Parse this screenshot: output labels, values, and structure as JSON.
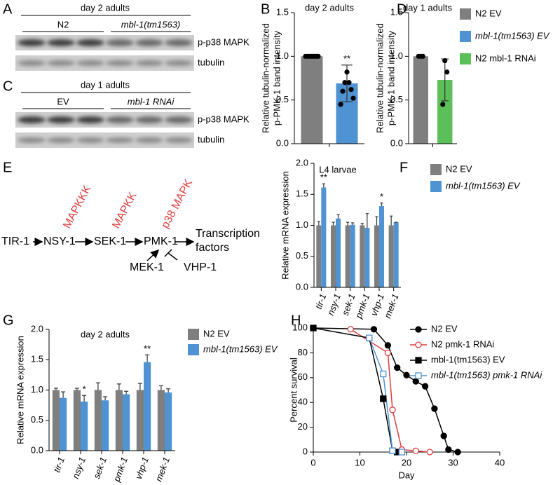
{
  "panel_letters": [
    "A",
    "B",
    "C",
    "D",
    "E",
    "F",
    "G",
    "H"
  ],
  "blots": [
    {
      "title": "day 2 adults",
      "groups": [
        "N2",
        "mbl-1(tm1563)"
      ],
      "rows": [
        "p-p38 MAPK",
        "tubulin"
      ]
    },
    {
      "title": "day 1 adults",
      "groups": [
        "EV",
        "mbl-1 RNAi"
      ],
      "rows": [
        "p-p38 MAPK",
        "tubulin"
      ]
    }
  ],
  "pathway": {
    "nodes": [
      "TIR-1",
      "NSY-1",
      "SEK-1",
      "PMK-1"
    ],
    "output": [
      "Transcription",
      "factors"
    ],
    "kinase_classes": [
      "MAPKKK",
      "MAPKK",
      "p38 MAPK"
    ],
    "activator": "MEK-1",
    "inhibitor": "VHP-1"
  },
  "chart_data": [
    {
      "type": "bar",
      "title": "day 2 adults",
      "ylabel": [
        "Relative tubulin-normalized",
        "p-PMK-1 band intensity"
      ],
      "ylim": [
        0,
        1.5
      ],
      "yticks": [
        {
          "value": 0,
          "label": "0.0"
        },
        0.5,
        {
          "value": 1,
          "label": "1.0"
        },
        1.5
      ],
      "series": [
        {
          "color": "#7f7f7f",
          "values": [
            1.0
          ],
          "points": [
            1,
            1,
            1,
            1,
            1,
            1,
            1
          ]
        },
        {
          "color": "#4f93d2",
          "values": [
            0.69
          ],
          "errors": [
            0.21
          ],
          "points": [
            0.82,
            0.7,
            0.7,
            0.62,
            0.6,
            0.52,
            0.45
          ],
          "annotations": [
            "**"
          ]
        }
      ]
    },
    {
      "type": "bar",
      "title": "day 1 adults",
      "ylabel": [
        "Relative tubulin-normalized",
        "p-PMK-1 band intensity"
      ],
      "ylim": [
        0,
        1.5
      ],
      "yticks": [
        {
          "value": 0,
          "label": "0.0"
        },
        0.5,
        {
          "value": 1,
          "label": "1.0"
        },
        1.5
      ],
      "series": [
        {
          "color": "#7f7f7f",
          "values": [
            1.0
          ],
          "points": [
            1,
            1,
            1
          ]
        },
        {
          "color": "#5cc05a",
          "values": [
            0.73
          ],
          "errors": [
            0.24
          ],
          "points": [
            0.95,
            0.82,
            0.45
          ]
        }
      ],
      "legend": [
        {
          "name": "N2 EV",
          "color": "#7f7f7f"
        },
        {
          "name": "mbl-1(tm1563) EV",
          "color": "#4f93d2"
        },
        {
          "name": "N2 mbl-1 RNAi",
          "color": "#5cc05a"
        }
      ]
    },
    {
      "type": "bar",
      "title": "L4 larvae",
      "ylabel": [
        "Relative mRNA expression"
      ],
      "categories": [
        "tir-1",
        "nsy-1",
        "sek-1",
        "pmk-1",
        "vhp-1",
        "mek-1"
      ],
      "ylim": [
        0,
        2
      ],
      "yticks": [
        {
          "value": 0,
          "label": "0.0"
        },
        0.5,
        {
          "value": 1,
          "label": "1.0"
        },
        1.5,
        {
          "value": 2,
          "label": "2.0"
        }
      ],
      "series": [
        {
          "name": "N2 EV",
          "color": "#7f7f7f",
          "values": [
            1,
            1,
            1,
            1,
            1,
            1
          ],
          "errors": [
            0.06,
            0.05,
            0.05,
            0.03,
            0.14,
            0.15
          ]
        },
        {
          "name": "mbl-1(tm1563) EV",
          "color": "#4f93d2",
          "values": [
            1.61,
            1.11,
            1.01,
            0.96,
            1.31,
            1.05
          ],
          "errors": [
            0.06,
            0.06,
            0.03,
            0.23,
            0.05,
            0
          ],
          "annotations": [
            "**",
            null,
            null,
            null,
            "*",
            null
          ]
        }
      ]
    },
    {
      "type": "bar",
      "title": "day 2 adults",
      "ylabel": [
        "Relative mRNA expression"
      ],
      "categories": [
        "tir-1",
        "nsy-1",
        "sek-1",
        "pmk-1",
        "vhp-1",
        "mek-1"
      ],
      "ylim": [
        0,
        2
      ],
      "yticks": [
        {
          "value": 0,
          "label": "0.0"
        },
        0.5,
        {
          "value": 1,
          "label": "1.0"
        },
        1.5,
        {
          "value": 2,
          "label": "2.0"
        }
      ],
      "series": [
        {
          "name": "N2 EV",
          "color": "#7f7f7f",
          "values": [
            1,
            1,
            1,
            1,
            1,
            1
          ],
          "errors": [
            0.03,
            0.03,
            0.12,
            0.1,
            0.11,
            0.07
          ]
        },
        {
          "name": "mbl-1(tm1563) EV",
          "color": "#4f93d2",
          "values": [
            0.87,
            0.81,
            0.83,
            0.93,
            1.46,
            0.96
          ],
          "errors": [
            0.1,
            0.1,
            0.06,
            0.05,
            0.12,
            0.06
          ],
          "annotations": [
            null,
            "*",
            null,
            null,
            "**",
            null
          ]
        }
      ]
    },
    {
      "type": "line",
      "xlabel": "Day",
      "ylabel": [
        "Percent survival"
      ],
      "xlim": [
        0,
        40
      ],
      "xticks": [
        0,
        10,
        20,
        30,
        40
      ],
      "ylim": [
        0,
        100
      ],
      "yticks": [
        0,
        20,
        40,
        60,
        80,
        100
      ],
      "series": [
        {
          "name": "N2 EV",
          "color": "#000000",
          "marker": "circle",
          "filled": true,
          "x": [
            0,
            13,
            16,
            18,
            20,
            22,
            24,
            26,
            28,
            29,
            31
          ],
          "values": [
            100,
            99,
            86,
            68,
            62,
            57,
            53,
            35,
            13,
            2,
            0
          ]
        },
        {
          "name": "N2 pmk-1 RNAi",
          "color": "#e03c3c",
          "marker": "circle",
          "filled": false,
          "x": [
            8,
            16,
            17,
            19,
            22,
            25
          ],
          "values": [
            99,
            80,
            34,
            2,
            1,
            0
          ]
        },
        {
          "name": "mbl-1(tm1563) EV",
          "color": "#000000",
          "marker": "square",
          "filled": true,
          "x": [
            0,
            12,
            15,
            17,
            18
          ],
          "values": [
            100,
            92,
            43,
            1,
            0
          ]
        },
        {
          "name": "mbl-1(tm1563) pmk-1 RNAi",
          "color": "#4f93d2",
          "marker": "square",
          "filled": false,
          "x": [
            12,
            15,
            17,
            19
          ],
          "values": [
            92,
            63,
            1,
            0
          ]
        }
      ]
    }
  ]
}
